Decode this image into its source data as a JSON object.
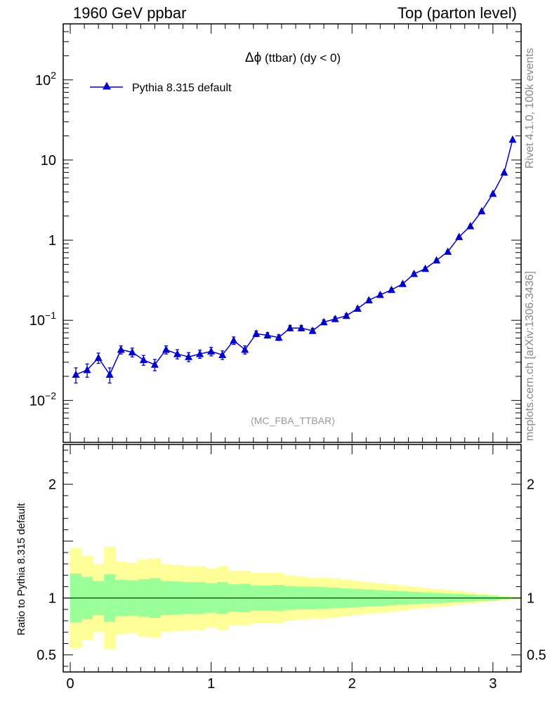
{
  "header": {
    "left": "1960 GeV ppbar",
    "right": "Top (parton level)"
  },
  "side": {
    "rivet": "Rivet 4.1.0,  100k events",
    "mcplots": "mcplots.cern.ch [arXiv:1306.3436]"
  },
  "chart_data": {
    "type": "line",
    "title": "Δϕ (ttbar) (dy < 0)",
    "title_symbol": "Δϕ",
    "title_rest": " (ttbar) (dy < 0)",
    "analysis_tag": "(MC_FBA_TTBAR)",
    "legend": {
      "label": "Pythia 8.315 default",
      "position": "top-left"
    },
    "series_color": "#0000cc",
    "yscale": "log",
    "xlim": [
      -0.05,
      3.2
    ],
    "ylim": [
      0.003,
      500
    ],
    "x": [
      0.04,
      0.12,
      0.2,
      0.28,
      0.36,
      0.44,
      0.52,
      0.6,
      0.68,
      0.76,
      0.84,
      0.92,
      1.0,
      1.08,
      1.16,
      1.24,
      1.32,
      1.4,
      1.48,
      1.56,
      1.64,
      1.72,
      1.8,
      1.88,
      1.96,
      2.04,
      2.12,
      2.2,
      2.28,
      2.36,
      2.44,
      2.52,
      2.6,
      2.68,
      2.76,
      2.84,
      2.92,
      3.0,
      3.08,
      3.14
    ],
    "values": [
      0.021,
      0.024,
      0.034,
      0.021,
      0.043,
      0.04,
      0.032,
      0.028,
      0.043,
      0.038,
      0.035,
      0.038,
      0.041,
      0.037,
      0.056,
      0.043,
      0.068,
      0.065,
      0.061,
      0.08,
      0.08,
      0.074,
      0.095,
      0.104,
      0.114,
      0.14,
      0.178,
      0.208,
      0.24,
      0.285,
      0.38,
      0.44,
      0.56,
      0.72,
      1.1,
      1.5,
      2.3,
      3.8,
      7.0,
      18.0
    ],
    "errors": [
      0.0045,
      0.0045,
      0.005,
      0.0045,
      0.005,
      0.005,
      0.0045,
      0.0045,
      0.005,
      0.005,
      0.0045,
      0.0045,
      0.005,
      0.0045,
      0.006,
      0.005,
      0.0055,
      0.005,
      0.005,
      0.006,
      0.006,
      0.0055,
      0.006,
      0.0065,
      0.007,
      0.008,
      0.009,
      0.01,
      0.011,
      0.012,
      0.015,
      0.016,
      0.02,
      0.024,
      0.03,
      0.04,
      0.05,
      0.07,
      0.1,
      0.2
    ],
    "y_ticks": [
      {
        "value": 0.01,
        "base": "10",
        "exp": "−2"
      },
      {
        "value": 0.1,
        "base": "10",
        "exp": "−1"
      },
      {
        "value": 1,
        "base": "1",
        "exp": ""
      },
      {
        "value": 10,
        "base": "10",
        "exp": ""
      },
      {
        "value": 100,
        "base": "10",
        "exp": "2"
      }
    ],
    "x_ticks": [
      {
        "value": 0,
        "label": "0"
      },
      {
        "value": 1,
        "label": "1"
      },
      {
        "value": 2,
        "label": "2"
      },
      {
        "value": 3,
        "label": "3"
      }
    ],
    "ratio": {
      "ylabel": "Ratio to Pythia 8.315 default",
      "ylim": [
        0.35,
        2.35
      ],
      "y_ticks": [
        {
          "value": 0.5,
          "label": "0.5"
        },
        {
          "value": 1,
          "label": "1"
        },
        {
          "value": 2,
          "label": "2"
        }
      ],
      "bin_edges": [
        0.0,
        0.08,
        0.16,
        0.24,
        0.32,
        0.4,
        0.48,
        0.56,
        0.64,
        0.72,
        0.8,
        0.88,
        0.96,
        1.04,
        1.12,
        1.2,
        1.28,
        1.36,
        1.44,
        1.52,
        1.6,
        1.68,
        1.76,
        1.84,
        1.92,
        2.0,
        2.08,
        2.16,
        2.24,
        2.32,
        2.4,
        2.48,
        2.56,
        2.64,
        2.72,
        2.8,
        2.88,
        2.96,
        3.04,
        3.12,
        3.2
      ],
      "inner_band": [
        0.215,
        0.185,
        0.15,
        0.21,
        0.16,
        0.155,
        0.165,
        0.175,
        0.15,
        0.145,
        0.14,
        0.14,
        0.13,
        0.14,
        0.12,
        0.125,
        0.11,
        0.11,
        0.115,
        0.105,
        0.1,
        0.1,
        0.095,
        0.09,
        0.085,
        0.08,
        0.075,
        0.07,
        0.065,
        0.06,
        0.055,
        0.05,
        0.045,
        0.04,
        0.035,
        0.03,
        0.025,
        0.02,
        0.012,
        0.006
      ],
      "outer_band": [
        0.44,
        0.37,
        0.3,
        0.45,
        0.32,
        0.31,
        0.34,
        0.35,
        0.3,
        0.29,
        0.28,
        0.28,
        0.26,
        0.28,
        0.24,
        0.24,
        0.22,
        0.22,
        0.22,
        0.2,
        0.19,
        0.18,
        0.18,
        0.17,
        0.16,
        0.15,
        0.14,
        0.13,
        0.12,
        0.11,
        0.1,
        0.09,
        0.08,
        0.07,
        0.06,
        0.05,
        0.04,
        0.03,
        0.02,
        0.01
      ],
      "inner_color": "#99ff99",
      "outer_color": "#ffff99"
    }
  }
}
